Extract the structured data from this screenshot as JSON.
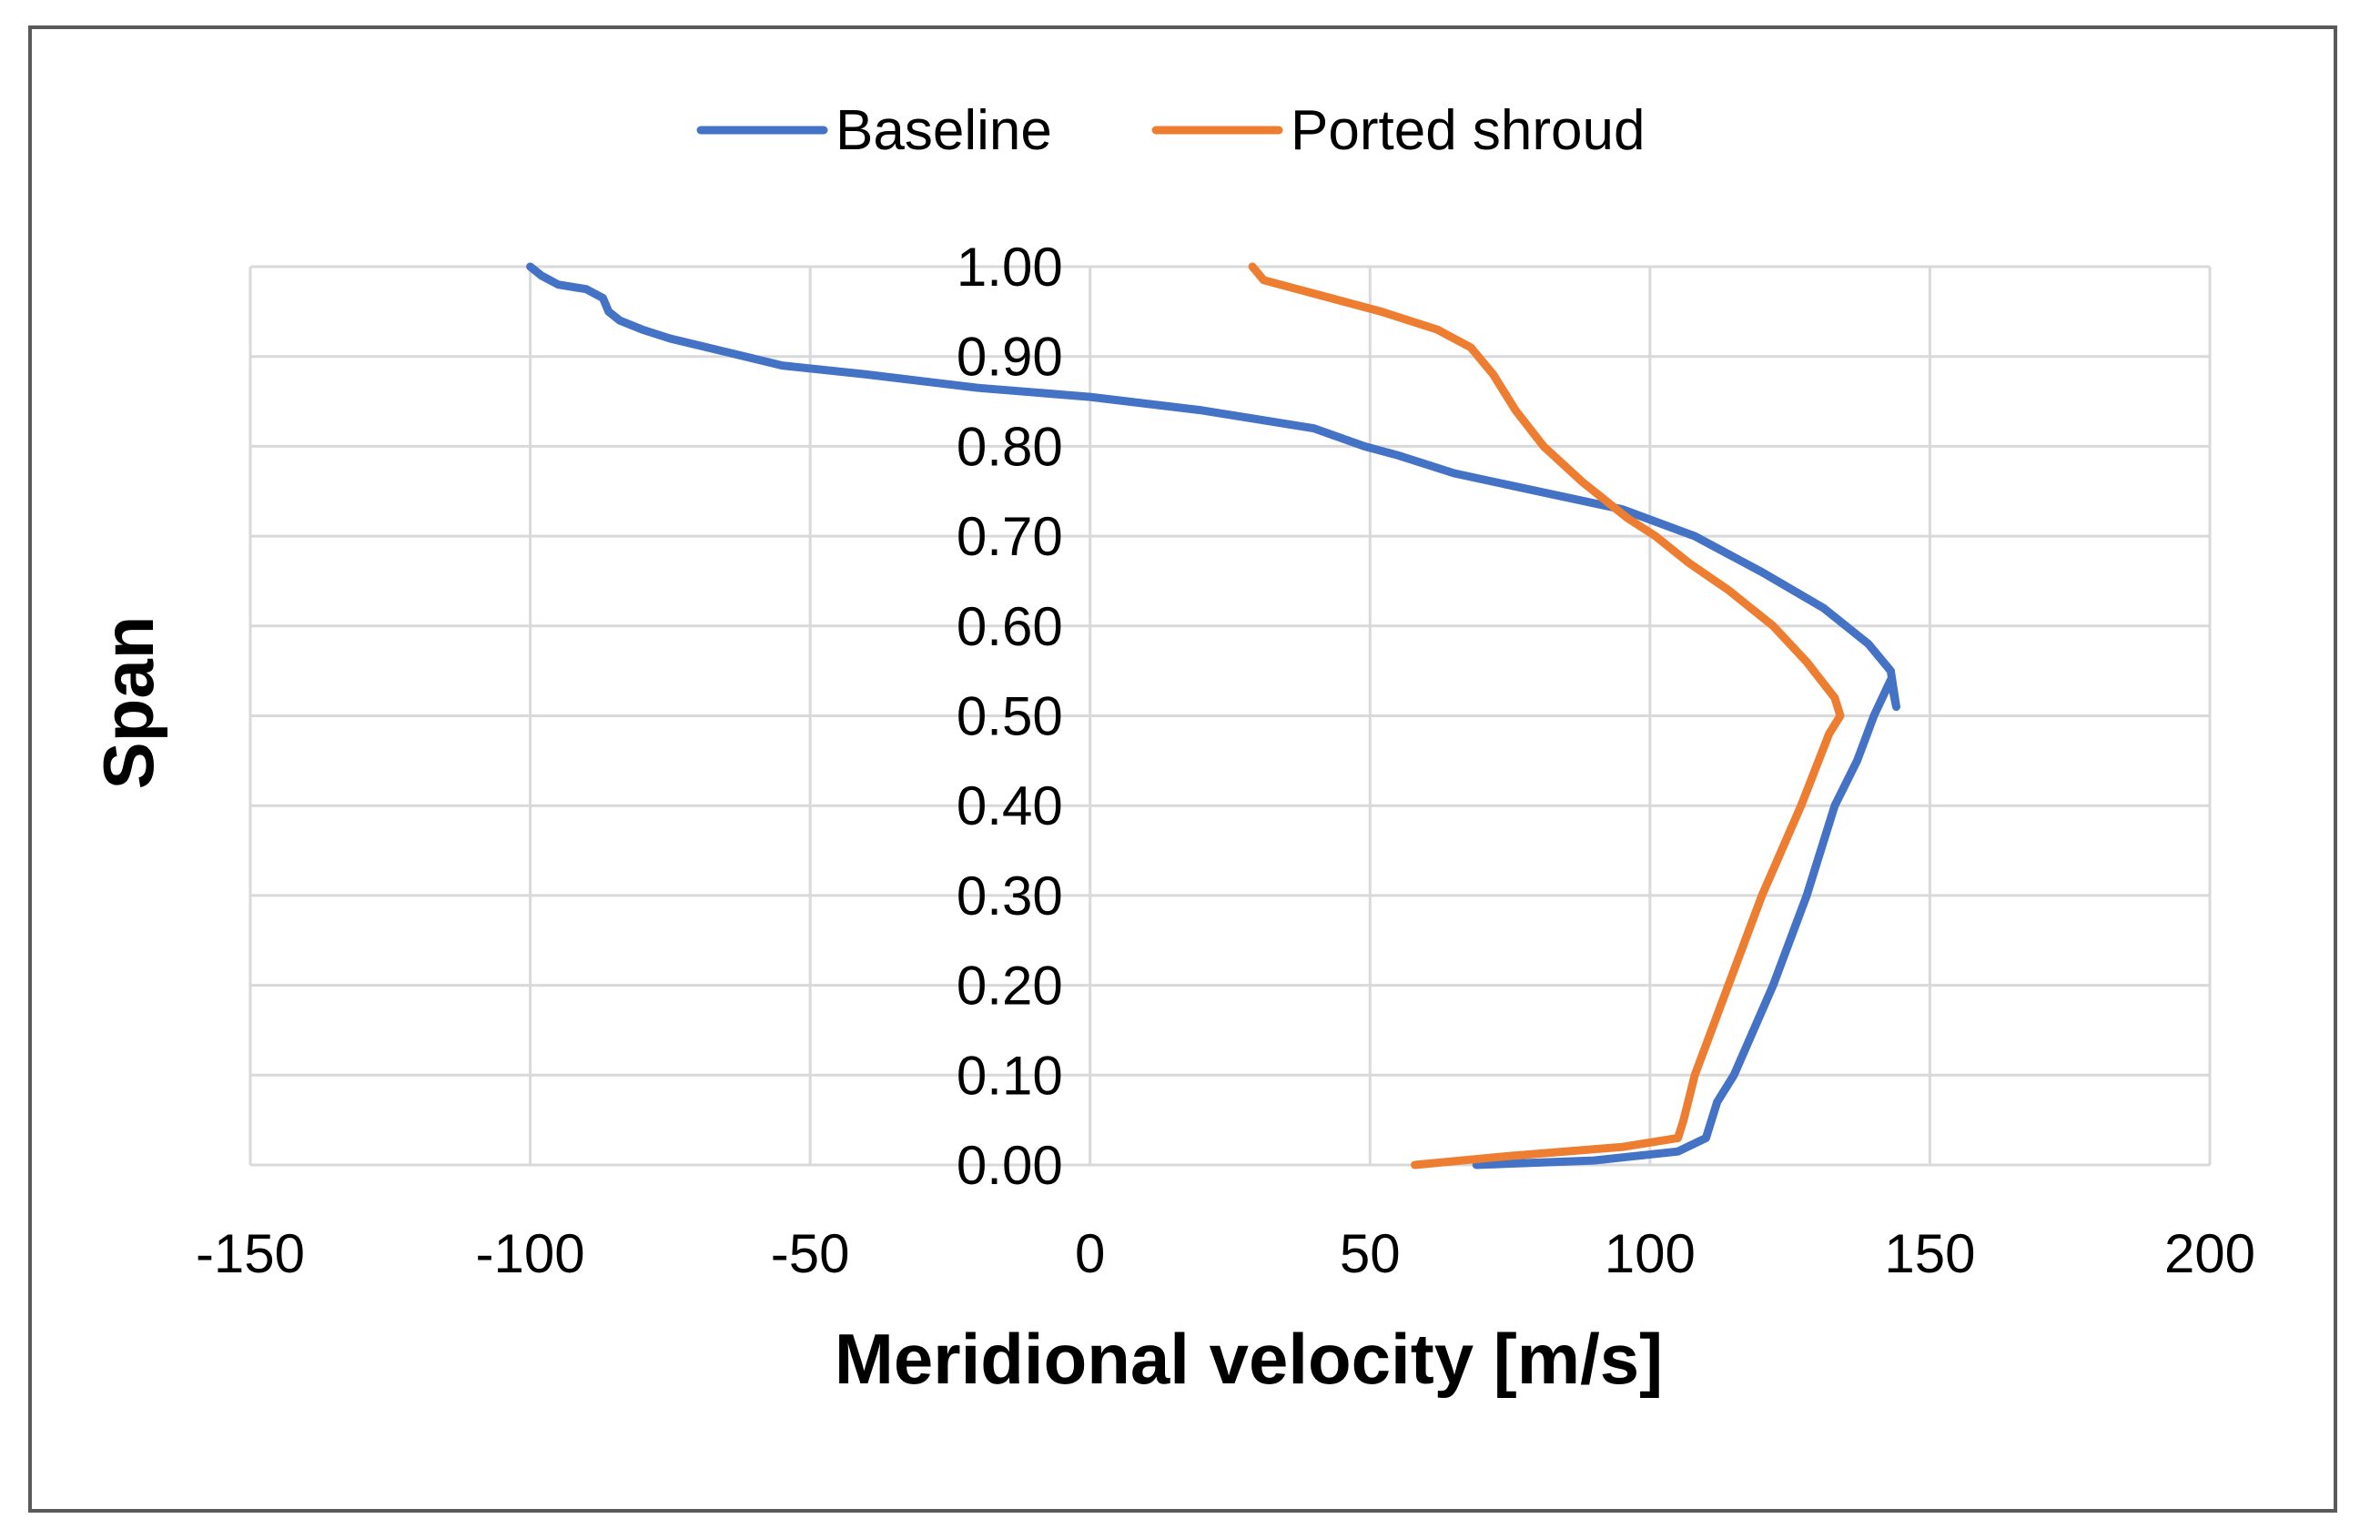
{
  "chart_data": {
    "type": "line",
    "title": "",
    "xlabel": "Meridional velocity [m/s]",
    "ylabel": "Span",
    "xlim": [
      -150,
      200
    ],
    "ylim": [
      0,
      1
    ],
    "x_ticks": [
      "-150",
      "-100",
      "-50",
      "0",
      "50",
      "100",
      "150",
      "200"
    ],
    "y_ticks": [
      "0.00",
      "0.10",
      "0.20",
      "0.30",
      "0.40",
      "0.50",
      "0.60",
      "0.70",
      "0.80",
      "0.90",
      "1.00"
    ],
    "grid": true,
    "legend_position": "top",
    "series": [
      {
        "name": "Baseline",
        "color": "#4472C4",
        "x": [
          69,
          90,
          105,
          110,
          112,
          115,
          122,
          128,
          133,
          137,
          140,
          143,
          144,
          143,
          139,
          131,
          120,
          108,
          95,
          80,
          65,
          55,
          49,
          40,
          20,
          0,
          -20,
          -40,
          -55,
          -65,
          -75,
          -80,
          -84,
          -86,
          -87,
          -90,
          -95,
          -98,
          -100
        ],
        "y": [
          0.0,
          0.005,
          0.015,
          0.03,
          0.07,
          0.1,
          0.2,
          0.3,
          0.4,
          0.45,
          0.5,
          0.54,
          0.51,
          0.55,
          0.58,
          0.62,
          0.66,
          0.7,
          0.73,
          0.75,
          0.77,
          0.79,
          0.8,
          0.82,
          0.84,
          0.855,
          0.865,
          0.88,
          0.89,
          0.905,
          0.92,
          0.93,
          0.94,
          0.95,
          0.965,
          0.975,
          0.98,
          0.99,
          1.0
        ]
      },
      {
        "name": "Ported shroud",
        "color": "#ED7D31",
        "x": [
          58,
          75,
          95,
          105,
          106,
          108,
          114,
          120,
          127,
          132,
          134,
          133,
          128,
          122,
          114,
          107,
          101,
          96,
          88,
          81,
          76,
          72,
          68,
          62,
          52,
          40,
          31,
          29
        ],
        "y": [
          0.0,
          0.01,
          0.02,
          0.03,
          0.05,
          0.1,
          0.2,
          0.3,
          0.4,
          0.48,
          0.5,
          0.52,
          0.56,
          0.6,
          0.64,
          0.67,
          0.7,
          0.72,
          0.76,
          0.8,
          0.84,
          0.88,
          0.91,
          0.93,
          0.95,
          0.97,
          0.985,
          1.0
        ]
      }
    ]
  }
}
